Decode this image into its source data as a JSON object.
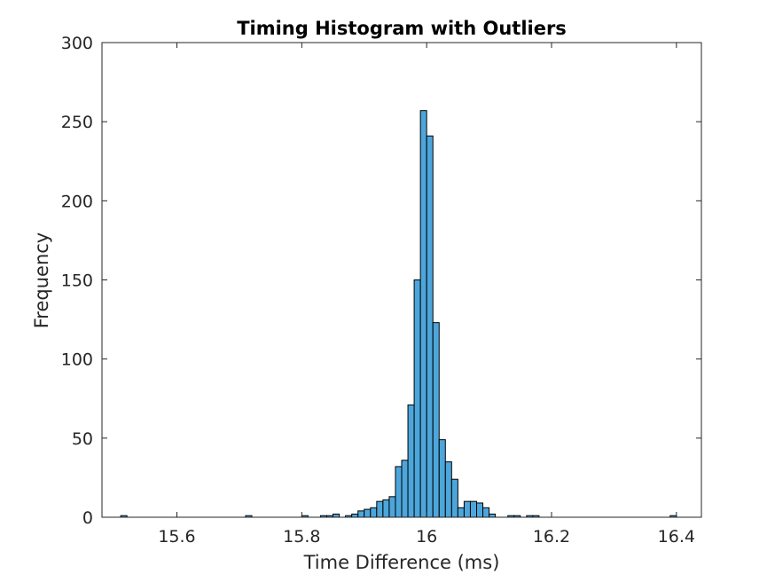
{
  "chart_data": {
    "type": "bar",
    "title": "Timing Histogram with Outliers",
    "xlabel": "Time Difference (ms)",
    "ylabel": "Frequency",
    "xlim": [
      15.48,
      16.44
    ],
    "ylim": [
      0,
      300
    ],
    "xticks": [
      15.6,
      15.8,
      16,
      16.2,
      16.4
    ],
    "xtick_labels": [
      "15.6",
      "15.8",
      "16",
      "16.2",
      "16.4"
    ],
    "yticks": [
      0,
      50,
      100,
      150,
      200,
      250,
      300
    ],
    "ytick_labels": [
      "0",
      "50",
      "100",
      "150",
      "200",
      "250",
      "300"
    ],
    "grid": false,
    "bin_width": 0.01,
    "bar_color": "#4da6db",
    "edge_color": "#000000",
    "bins": [
      {
        "start": 15.51,
        "count": 1
      },
      {
        "start": 15.71,
        "count": 1
      },
      {
        "start": 15.8,
        "count": 1
      },
      {
        "start": 15.83,
        "count": 1
      },
      {
        "start": 15.84,
        "count": 1
      },
      {
        "start": 15.85,
        "count": 2
      },
      {
        "start": 15.87,
        "count": 1
      },
      {
        "start": 15.88,
        "count": 2
      },
      {
        "start": 15.89,
        "count": 4
      },
      {
        "start": 15.9,
        "count": 5
      },
      {
        "start": 15.91,
        "count": 6
      },
      {
        "start": 15.92,
        "count": 10
      },
      {
        "start": 15.93,
        "count": 11
      },
      {
        "start": 15.94,
        "count": 13
      },
      {
        "start": 15.95,
        "count": 32
      },
      {
        "start": 15.96,
        "count": 36
      },
      {
        "start": 15.97,
        "count": 71
      },
      {
        "start": 15.98,
        "count": 150
      },
      {
        "start": 15.99,
        "count": 257
      },
      {
        "start": 16.0,
        "count": 241
      },
      {
        "start": 16.01,
        "count": 123
      },
      {
        "start": 16.02,
        "count": 49
      },
      {
        "start": 16.03,
        "count": 35
      },
      {
        "start": 16.04,
        "count": 24
      },
      {
        "start": 16.05,
        "count": 6
      },
      {
        "start": 16.06,
        "count": 10
      },
      {
        "start": 16.07,
        "count": 10
      },
      {
        "start": 16.08,
        "count": 9
      },
      {
        "start": 16.09,
        "count": 6
      },
      {
        "start": 16.1,
        "count": 2
      },
      {
        "start": 16.13,
        "count": 1
      },
      {
        "start": 16.14,
        "count": 1
      },
      {
        "start": 16.16,
        "count": 1
      },
      {
        "start": 16.17,
        "count": 1
      },
      {
        "start": 16.39,
        "count": 1
      }
    ]
  }
}
